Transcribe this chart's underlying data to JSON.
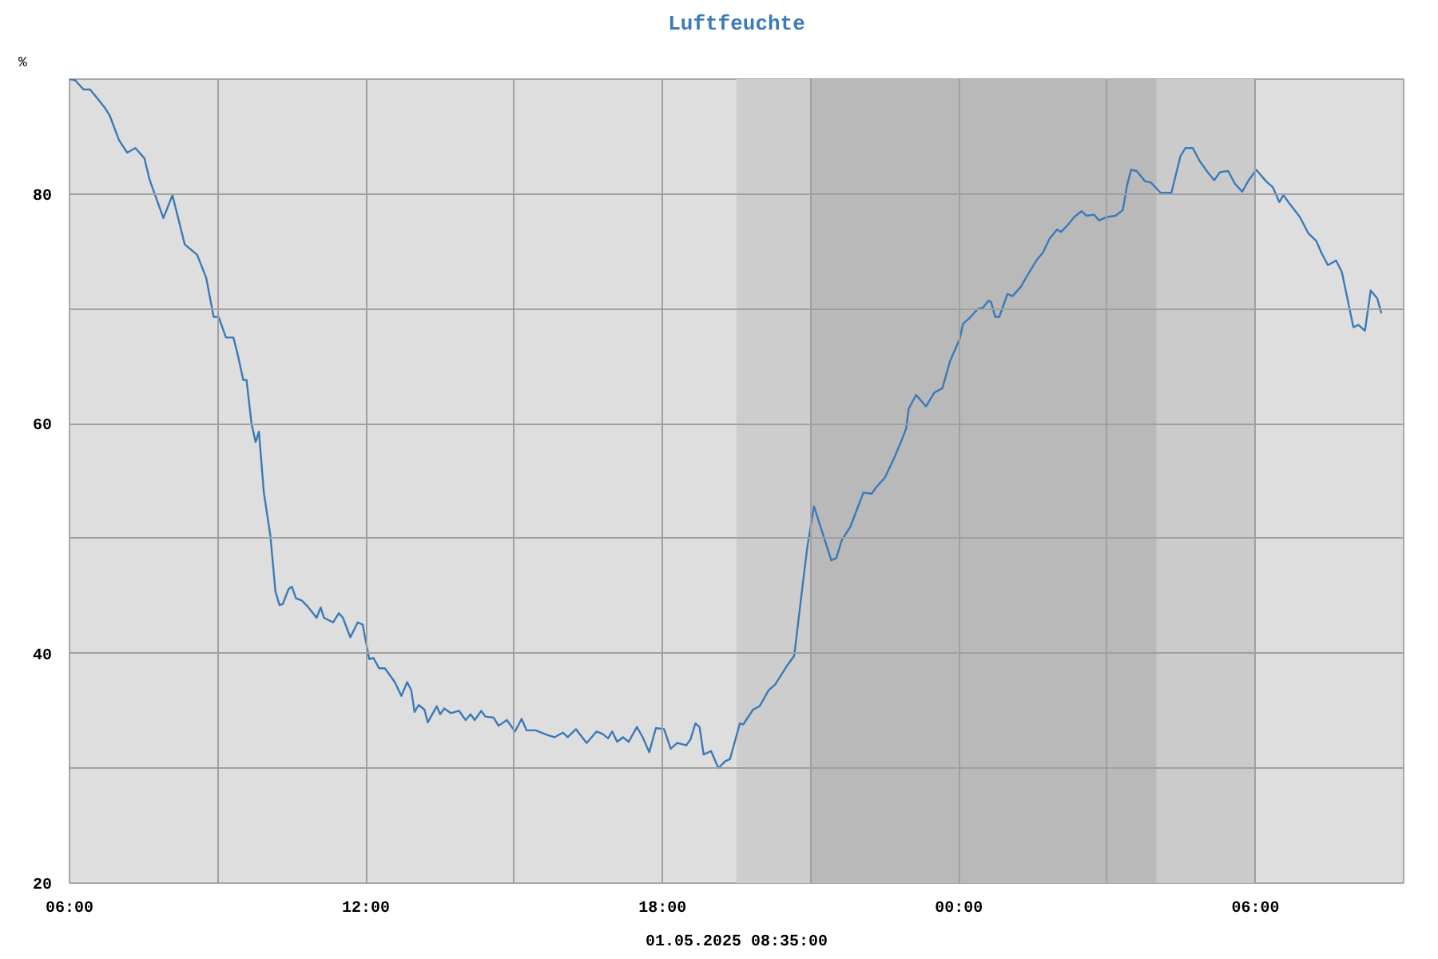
{
  "chart_data": {
    "type": "line",
    "title": "Luftfeuchte",
    "ylabel": "%",
    "annotations": [
      "01.05.2025 08:35:00"
    ],
    "xlim": [
      "2025-04-30T06:00",
      "2025-05-01T09:00"
    ],
    "ylim": [
      20,
      90
    ],
    "xticks": [
      {
        "value": "2025-04-30T06:00",
        "label": "06:00"
      },
      {
        "value": "2025-04-30T09:00",
        "label": null
      },
      {
        "value": "2025-04-30T12:00",
        "label": "12:00"
      },
      {
        "value": "2025-04-30T15:00",
        "label": null
      },
      {
        "value": "2025-04-30T18:00",
        "label": "18:00"
      },
      {
        "value": "2025-04-30T21:00",
        "label": null
      },
      {
        "value": "2025-05-01T00:00",
        "label": "00:00"
      },
      {
        "value": "2025-05-01T03:00",
        "label": null
      },
      {
        "value": "2025-05-01T06:00",
        "label": "06:00"
      }
    ],
    "yticks": [
      20,
      {
        "value": 30,
        "label": null
      },
      40,
      {
        "value": 50,
        "label": null
      },
      60,
      {
        "value": 70,
        "label": null
      },
      80
    ],
    "grid": true,
    "marker": "none",
    "line_style": "solid",
    "bands": [
      {
        "axis": "x",
        "from": "2025-04-30T19:30",
        "to": "2025-04-30T21:00",
        "label": null,
        "color": "#cdcdcd"
      },
      {
        "axis": "x",
        "from": "2025-04-30T21:00",
        "to": "2025-05-01T04:00",
        "label": null,
        "color": "#b9b9b9"
      },
      {
        "axis": "x",
        "from": "2025-05-01T04:00",
        "to": "2025-05-01T06:00",
        "label": null,
        "color": "#cbcbcb"
      }
    ],
    "series": [
      {
        "color": "#3a7ab8",
        "x": [
          "2025-04-30T06:00",
          "2025-04-30T06:07",
          "2025-04-30T06:17",
          "2025-04-30T06:25",
          "2025-04-30T06:33",
          "2025-04-30T06:43",
          "2025-04-30T06:49",
          "2025-04-30T07:00",
          "2025-04-30T07:10",
          "2025-04-30T07:20",
          "2025-04-30T07:31",
          "2025-04-30T07:37",
          "2025-04-30T07:54",
          "2025-04-30T08:05",
          "2025-04-30T08:20",
          "2025-04-30T08:35",
          "2025-04-30T08:46",
          "2025-04-30T08:55",
          "2025-04-30T09:01",
          "2025-04-30T09:10",
          "2025-04-30T09:19",
          "2025-04-30T09:24",
          "2025-04-30T09:31",
          "2025-04-30T09:35",
          "2025-04-30T09:41",
          "2025-04-30T09:46",
          "2025-04-30T09:50",
          "2025-04-30T09:56",
          "2025-04-30T10:04",
          "2025-04-30T10:10",
          "2025-04-30T10:15",
          "2025-04-30T10:19",
          "2025-04-30T10:26",
          "2025-04-30T10:30",
          "2025-04-30T10:35",
          "2025-04-30T10:42",
          "2025-04-30T10:49",
          "2025-04-30T11:00",
          "2025-04-30T11:05",
          "2025-04-30T11:09",
          "2025-04-30T11:20",
          "2025-04-30T11:27",
          "2025-04-30T11:32",
          "2025-04-30T11:41",
          "2025-04-30T11:50",
          "2025-04-30T11:56",
          "2025-04-30T12:04",
          "2025-04-30T12:09",
          "2025-04-30T12:16",
          "2025-04-30T12:23",
          "2025-04-30T12:35",
          "2025-04-30T12:43",
          "2025-04-30T12:50",
          "2025-04-30T12:55",
          "2025-04-30T12:59",
          "2025-04-30T13:04",
          "2025-04-30T13:11",
          "2025-04-30T13:15",
          "2025-04-30T13:26",
          "2025-04-30T13:30",
          "2025-04-30T13:35",
          "2025-04-30T13:43",
          "2025-04-30T13:53",
          "2025-04-30T14:01",
          "2025-04-30T14:07",
          "2025-04-30T14:12",
          "2025-04-30T14:20",
          "2025-04-30T14:25",
          "2025-04-30T14:35",
          "2025-04-30T14:41",
          "2025-04-30T14:51",
          "2025-04-30T15:01",
          "2025-04-30T15:09",
          "2025-04-30T15:15",
          "2025-04-30T15:26",
          "2025-04-30T15:40",
          "2025-04-30T15:49",
          "2025-04-30T15:59",
          "2025-04-30T16:05",
          "2025-04-30T16:15",
          "2025-04-30T16:28",
          "2025-04-30T16:40",
          "2025-04-30T16:47",
          "2025-04-30T16:54",
          "2025-04-30T16:59",
          "2025-04-30T17:05",
          "2025-04-30T17:12",
          "2025-04-30T17:19",
          "2025-04-30T17:29",
          "2025-04-30T17:36",
          "2025-04-30T17:44",
          "2025-04-30T17:52",
          "2025-04-30T18:02",
          "2025-04-30T18:10",
          "2025-04-30T18:18",
          "2025-04-30T18:29",
          "2025-04-30T18:34",
          "2025-04-30T18:40",
          "2025-04-30T18:45",
          "2025-04-30T18:50",
          "2025-04-30T18:59",
          "2025-04-30T19:08",
          "2025-04-30T19:16",
          "2025-04-30T19:22",
          "2025-04-30T19:34",
          "2025-04-30T19:38",
          "2025-04-30T19:50",
          "2025-04-30T19:58",
          "2025-04-30T20:09",
          "2025-04-30T20:17",
          "2025-04-30T20:32",
          "2025-04-30T20:40",
          "2025-04-30T20:45",
          "2025-04-30T20:50",
          "2025-04-30T20:56",
          "2025-04-30T21:04",
          "2025-04-30T21:13",
          "2025-04-30T21:25",
          "2025-04-30T21:31",
          "2025-04-30T21:38",
          "2025-04-30T21:48",
          "2025-04-30T22:04",
          "2025-04-30T22:14",
          "2025-04-30T22:20",
          "2025-04-30T22:30",
          "2025-04-30T22:40",
          "2025-04-30T22:49",
          "2025-04-30T22:56",
          "2025-04-30T22:59",
          "2025-04-30T23:08",
          "2025-04-30T23:20",
          "2025-04-30T23:30",
          "2025-04-30T23:40",
          "2025-04-30T23:49",
          "2025-05-01T00:01",
          "2025-05-01T00:05",
          "2025-05-01T00:13",
          "2025-05-01T00:23",
          "2025-05-01T00:29",
          "2025-05-01T00:36",
          "2025-05-01T00:39",
          "2025-05-01T00:44",
          "2025-05-01T00:49",
          "2025-05-01T00:59",
          "2025-05-01T01:05",
          "2025-05-01T01:15",
          "2025-05-01T01:23",
          "2025-05-01T01:34",
          "2025-05-01T01:42",
          "2025-05-01T01:50",
          "2025-05-01T01:59",
          "2025-05-01T02:04",
          "2025-05-01T02:11",
          "2025-05-01T02:20",
          "2025-05-01T02:29",
          "2025-05-01T02:35",
          "2025-05-01T02:44",
          "2025-05-01T02:50",
          "2025-05-01T03:00",
          "2025-05-01T03:10",
          "2025-05-01T03:19",
          "2025-05-01T03:24",
          "2025-05-01T03:29",
          "2025-05-01T03:36",
          "2025-05-01T03:46",
          "2025-05-01T03:53",
          "2025-05-01T04:05",
          "2025-05-01T04:18",
          "2025-05-01T04:29",
          "2025-05-01T04:35",
          "2025-05-01T04:44",
          "2025-05-01T04:52",
          "2025-05-01T05:03",
          "2025-05-01T05:10",
          "2025-05-01T05:17",
          "2025-05-01T05:27",
          "2025-05-01T05:35",
          "2025-05-01T05:44",
          "2025-05-01T05:51",
          "2025-05-01T06:01",
          "2025-05-01T06:13",
          "2025-05-01T06:21",
          "2025-05-01T06:29",
          "2025-05-01T06:34",
          "2025-05-01T06:41",
          "2025-05-01T06:54",
          "2025-05-01T07:04",
          "2025-05-01T07:14",
          "2025-05-01T07:20",
          "2025-05-01T07:28",
          "2025-05-01T07:38",
          "2025-05-01T07:45",
          "2025-05-01T07:59",
          "2025-05-01T08:05",
          "2025-05-01T08:13",
          "2025-05-01T08:20",
          "2025-05-01T08:28",
          "2025-05-01T08:33"
        ],
        "values": [
          90.0,
          89.9,
          89.1,
          89.1,
          88.4,
          87.5,
          86.8,
          84.7,
          83.6,
          84.0,
          83.1,
          81.3,
          77.9,
          79.9,
          75.6,
          74.7,
          72.7,
          69.3,
          69.3,
          67.5,
          67.5,
          66.1,
          63.8,
          63.8,
          60.0,
          58.4,
          59.3,
          54.0,
          50.2,
          45.4,
          44.2,
          44.3,
          45.6,
          45.8,
          44.8,
          44.6,
          44.1,
          43.1,
          44.0,
          43.1,
          42.7,
          43.5,
          43.1,
          41.4,
          42.7,
          42.5,
          39.5,
          39.6,
          38.7,
          38.7,
          37.5,
          36.3,
          37.5,
          36.8,
          34.9,
          35.5,
          35.1,
          34.0,
          35.4,
          34.7,
          35.2,
          34.8,
          35.0,
          34.2,
          34.7,
          34.2,
          35.0,
          34.5,
          34.4,
          33.7,
          34.2,
          33.2,
          34.3,
          33.3,
          33.3,
          32.9,
          32.7,
          33.1,
          32.7,
          33.4,
          32.2,
          33.2,
          33.0,
          32.6,
          33.2,
          32.3,
          32.7,
          32.3,
          33.6,
          32.7,
          31.4,
          33.5,
          33.4,
          31.7,
          32.2,
          32.0,
          32.5,
          33.9,
          33.6,
          31.2,
          31.5,
          30.0,
          30.6,
          30.8,
          33.9,
          33.8,
          35.1,
          35.4,
          36.8,
          37.3,
          39.0,
          39.8,
          42.8,
          45.8,
          49.3,
          52.8,
          50.8,
          48.1,
          48.3,
          49.9,
          51.0,
          54.0,
          53.9,
          54.5,
          55.3,
          56.8,
          58.3,
          59.6,
          61.3,
          62.5,
          61.5,
          62.7,
          63.1,
          65.4,
          67.4,
          68.7,
          69.2,
          70.0,
          70.1,
          70.7,
          70.6,
          69.3,
          69.3,
          71.3,
          71.1,
          71.9,
          72.9,
          74.2,
          74.9,
          76.1,
          76.9,
          76.7,
          77.2,
          78.0,
          78.5,
          78.1,
          78.2,
          77.7,
          78.0,
          78.1,
          78.6,
          80.7,
          82.1,
          82.0,
          81.1,
          81.0,
          80.1,
          80.1,
          83.3,
          84.0,
          84.0,
          82.9,
          81.8,
          81.2,
          81.9,
          82.0,
          80.9,
          80.2,
          81.1,
          82.1,
          81.1,
          80.6,
          79.3,
          79.9,
          79.2,
          78.0,
          76.6,
          75.9,
          74.9,
          73.8,
          74.2,
          73.2,
          68.4,
          68.6,
          68.1,
          71.6,
          70.9,
          69.6
        ]
      }
    ]
  }
}
